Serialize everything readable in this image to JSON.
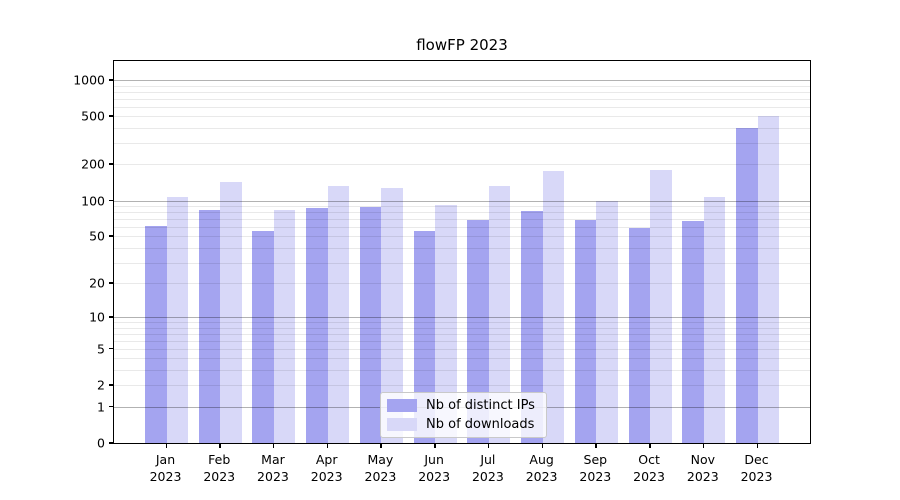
{
  "chart_data": {
    "type": "bar",
    "title": "flowFP 2023",
    "categories": [
      "Jan",
      "Feb",
      "Mar",
      "Apr",
      "May",
      "Jun",
      "Jul",
      "Aug",
      "Sep",
      "Oct",
      "Nov",
      "Dec"
    ],
    "year": "2023",
    "series": [
      {
        "name": "Nb of distinct IPs",
        "color": "#a4a4f0",
        "values": [
          61,
          83,
          56,
          86,
          89,
          56,
          69,
          81,
          69,
          59,
          67,
          398
        ]
      },
      {
        "name": "Nb of downloads",
        "color": "#d8d8f8",
        "values": [
          108,
          142,
          83,
          133,
          128,
          92,
          133,
          175,
          100,
          178,
          108,
          500
        ]
      }
    ],
    "xlabel": "",
    "ylabel": "",
    "yscale": "log1p",
    "ylim": [
      0,
      1437
    ],
    "yticks": [
      0,
      1,
      2,
      5,
      10,
      20,
      50,
      100,
      200,
      500,
      1000
    ],
    "major_gridlines": [
      1,
      10,
      100,
      1000
    ],
    "minor_gridlines": [
      2,
      3,
      4,
      5,
      6,
      7,
      8,
      9,
      20,
      30,
      40,
      50,
      60,
      70,
      80,
      90,
      200,
      300,
      400,
      500,
      600,
      700,
      800,
      900
    ],
    "grid": true,
    "legend_position": "bottom-center"
  }
}
